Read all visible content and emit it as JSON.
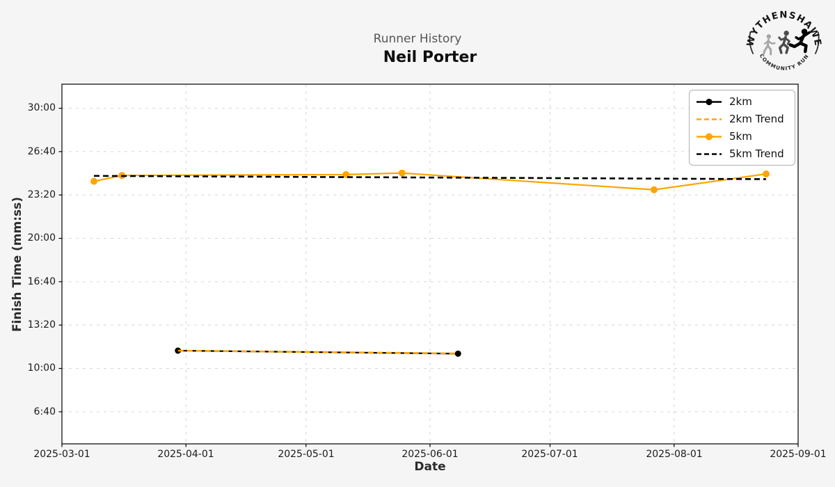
{
  "header": {
    "suptitle": "Runner History",
    "title": "Neil Porter"
  },
  "logo": {
    "top_text": "WYTHENSHAWE",
    "bottom_text": "COMMUNITY RUN"
  },
  "colors": {
    "accent_orange": "#FFA500",
    "line_black": "#000000",
    "figure_bg": "#f5f5f5",
    "plot_bg": "#ffffff",
    "grid": "#d6d6d6",
    "subtitle_gray": "#555555"
  },
  "chart_data": {
    "type": "line",
    "title": "Neil Porter",
    "suptitle": "Runner History",
    "xlabel": "Date",
    "ylabel": "Finish Time (mm:ss)",
    "grid": true,
    "legend_position": "upper right",
    "x_domain": [
      "2025-03-01",
      "2025-09-01"
    ],
    "ylim_seconds": [
      252,
      1911
    ],
    "x_ticks": [
      "2025-03-01",
      "2025-04-01",
      "2025-05-01",
      "2025-06-01",
      "2025-07-01",
      "2025-08-01",
      "2025-09-01"
    ],
    "y_ticks": [
      {
        "label": "30:00",
        "seconds": 1800
      },
      {
        "label": "26:40",
        "seconds": 1600
      },
      {
        "label": "23:20",
        "seconds": 1400
      },
      {
        "label": "20:00",
        "seconds": 1200
      },
      {
        "label": "16:40",
        "seconds": 1000
      },
      {
        "label": "13:20",
        "seconds": 800
      },
      {
        "label": "10:00",
        "seconds": 600
      },
      {
        "label": "6:40",
        "seconds": 400
      }
    ],
    "series": [
      {
        "name": "2km",
        "color": "#000000",
        "line_style": "solid",
        "markers": true,
        "points": [
          {
            "date": "2025-03-30",
            "time": "11:22",
            "seconds": 682
          },
          {
            "date": "2025-06-08",
            "time": "11:08",
            "seconds": 668
          }
        ]
      },
      {
        "name": "2km Trend",
        "color": "#FFA500",
        "line_style": "dashed",
        "markers": false,
        "points": [
          {
            "date": "2025-03-30",
            "time": "11:22",
            "seconds": 682
          },
          {
            "date": "2025-06-08",
            "time": "11:09",
            "seconds": 669
          }
        ]
      },
      {
        "name": "5km",
        "color": "#FFA500",
        "line_style": "solid",
        "markers": true,
        "points": [
          {
            "date": "2025-03-09",
            "time": "24:23",
            "seconds": 1463
          },
          {
            "date": "2025-03-16",
            "time": "24:50",
            "seconds": 1490
          },
          {
            "date": "2025-05-11",
            "time": "24:54",
            "seconds": 1494
          },
          {
            "date": "2025-05-25",
            "time": "25:01",
            "seconds": 1501
          },
          {
            "date": "2025-07-27",
            "time": "23:44",
            "seconds": 1424
          },
          {
            "date": "2025-08-24",
            "time": "24:57",
            "seconds": 1497
          }
        ]
      },
      {
        "name": "5km Trend",
        "color": "#000000",
        "line_style": "dashed",
        "markers": false,
        "points": [
          {
            "date": "2025-03-09",
            "time": "24:48",
            "seconds": 1488
          },
          {
            "date": "2025-08-24",
            "time": "24:33",
            "seconds": 1473
          }
        ]
      }
    ]
  }
}
